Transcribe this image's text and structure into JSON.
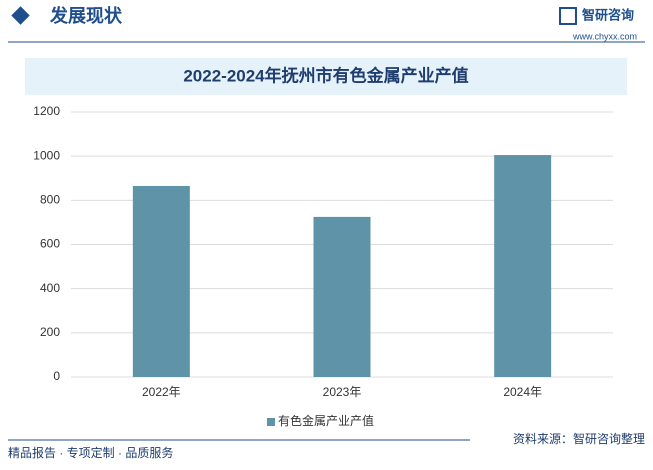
{
  "header": {
    "title": "发展现状",
    "logo": "智研咨询",
    "url": "www.chyxx.com"
  },
  "chart_data": {
    "type": "bar",
    "title": "2022-2024年抚州市有色金属产业产值",
    "categories": [
      "2022年",
      "2023年",
      "2024年"
    ],
    "series": [
      {
        "name": "有色金属产业产值",
        "color": "#5e93a8",
        "values": [
          865,
          725,
          1005
        ]
      }
    ],
    "ylim": [
      0,
      1200
    ],
    "yticks": [
      0,
      200,
      400,
      600,
      800,
      1000,
      1200
    ],
    "grid": true,
    "legend": "bottom"
  },
  "footer": {
    "tagline": "精品报告 · 专项定制 · 品质服务",
    "source": "资料来源：智研咨询整理"
  }
}
